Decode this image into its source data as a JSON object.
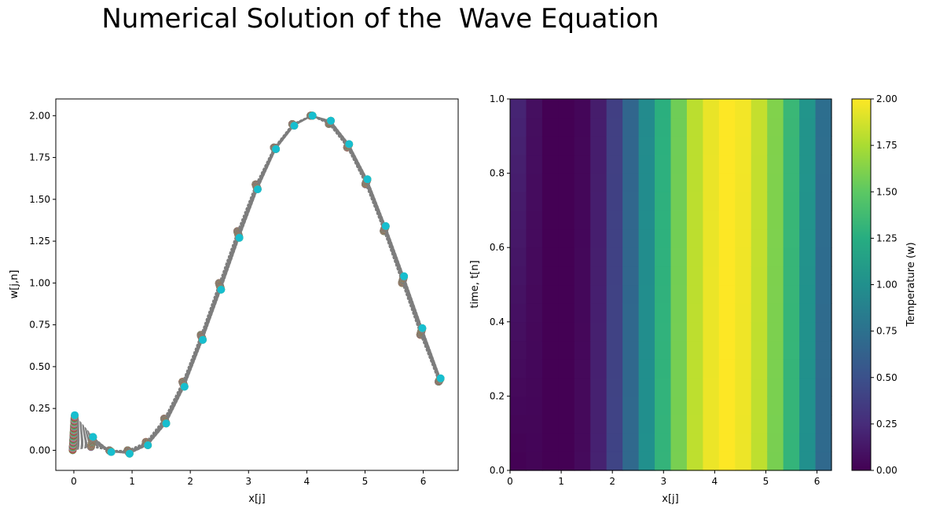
{
  "figure": {
    "title": "Numerical Solution of the  Wave Equation"
  },
  "chart_data": [
    {
      "type": "line",
      "subtype": "line-with-markers",
      "xlabel": "x[j]",
      "ylabel": "w[j,n]",
      "xlim": [
        -0.31,
        6.6
      ],
      "ylim": [
        -0.12,
        2.1
      ],
      "xticks": [
        0,
        1,
        2,
        3,
        4,
        5,
        6
      ],
      "yticks": [
        0.0,
        0.25,
        0.5,
        0.75,
        1.0,
        1.25,
        1.5,
        1.75,
        2.0
      ],
      "ytick_labels": [
        "0.00",
        "0.25",
        "0.50",
        "0.75",
        "1.00",
        "1.25",
        "1.50",
        "1.75",
        "2.00"
      ],
      "grid": false,
      "x": [
        0.0,
        0.3142,
        0.6283,
        0.9425,
        1.2566,
        1.5708,
        1.885,
        2.1991,
        2.5133,
        2.8274,
        3.1416,
        3.4558,
        3.7699,
        4.0841,
        4.3982,
        4.7124,
        5.0265,
        5.3407,
        5.6549,
        5.969,
        6.2832
      ],
      "series": [
        {
          "time": 0.0,
          "values": [
            0.0,
            0.02,
            0.0,
            0.0,
            0.05,
            0.19,
            0.41,
            0.69,
            1.0,
            1.31,
            1.59,
            1.81,
            1.95,
            2.0,
            1.95,
            1.81,
            1.59,
            1.31,
            1.0,
            0.69,
            0.41
          ]
        },
        {
          "time": 1.0,
          "values": [
            0.21,
            0.08,
            -0.01,
            -0.02,
            0.03,
            0.16,
            0.38,
            0.66,
            0.96,
            1.27,
            1.56,
            1.8,
            1.94,
            2.0,
            1.97,
            1.83,
            1.62,
            1.34,
            1.04,
            0.73,
            0.43
          ]
        }
      ],
      "n_time_steps": 100,
      "marker_colors": [
        "#1f77b4",
        "#ff7f0e",
        "#2ca02c",
        "#d62728",
        "#9467bd",
        "#8c564b",
        "#e377c2",
        "#7f7f7f",
        "#bcbd22",
        "#17becf"
      ]
    },
    {
      "type": "heatmap",
      "xlabel": "x[j]",
      "ylabel": "time, t[n]",
      "xlim": [
        0,
        6.2832
      ],
      "ylim": [
        0,
        1
      ],
      "xticks": [
        0,
        1,
        2,
        3,
        4,
        5,
        6
      ],
      "yticks": [
        0.0,
        0.2,
        0.4,
        0.6,
        0.8,
        1.0
      ],
      "ytick_labels": [
        "0.0",
        "0.2",
        "0.4",
        "0.6",
        "0.8",
        "1.0"
      ],
      "n_columns": 20,
      "initial_values": [
        0.0,
        0.02,
        0.0,
        0.0,
        0.05,
        0.19,
        0.41,
        0.69,
        1.0,
        1.31,
        1.59,
        1.81,
        1.95,
        2.0,
        1.95,
        1.81,
        1.59,
        1.31,
        1.0,
        0.69
      ],
      "final_values": [
        0.21,
        0.08,
        -0.01,
        -0.02,
        0.03,
        0.16,
        0.38,
        0.66,
        0.96,
        1.27,
        1.56,
        1.8,
        1.94,
        2.0,
        1.97,
        1.83,
        1.62,
        1.34,
        1.04,
        0.73
      ],
      "colormap": "viridis",
      "colorbar": {
        "label": "Temperature (w)",
        "range": [
          0,
          2
        ],
        "ticks": [
          0.0,
          0.25,
          0.5,
          0.75,
          1.0,
          1.25,
          1.5,
          1.75,
          2.0
        ],
        "tick_labels": [
          "0.00",
          "0.25",
          "0.50",
          "0.75",
          "1.00",
          "1.25",
          "1.50",
          "1.75",
          "2.00"
        ]
      }
    }
  ]
}
